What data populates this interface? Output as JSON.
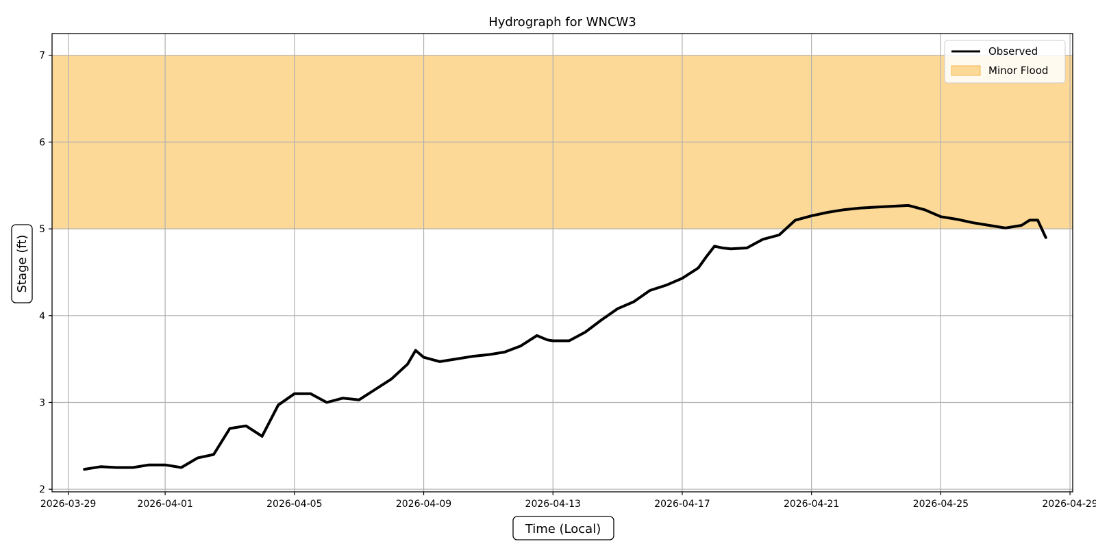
{
  "chart_data": {
    "type": "line",
    "title": "Hydrograph for WNCW3",
    "xlabel": "Time (Local)",
    "ylabel": "Stage (ft)",
    "xlim": [
      "2026-03-28T12:00",
      "2026-04-29T02:00"
    ],
    "ylim": [
      1.97,
      7.25
    ],
    "x_ticks": [
      "2026-03-29",
      "2026-04-01",
      "2026-04-05",
      "2026-04-09",
      "2026-04-13",
      "2026-04-17",
      "2026-04-21",
      "2026-04-25",
      "2026-04-29"
    ],
    "y_ticks": [
      "2",
      "3",
      "4",
      "5",
      "6",
      "7"
    ],
    "grid": true,
    "legend": {
      "position": "top-right",
      "entries": [
        {
          "name": "Observed",
          "kind": "line",
          "color": "#000000"
        },
        {
          "name": "Minor Flood",
          "kind": "patch",
          "color": "#fdd998",
          "edge": "#f5b54a"
        }
      ]
    },
    "bands": [
      {
        "name": "Minor Flood",
        "y_from": 5,
        "y_to": 7,
        "color": "#fdd998",
        "line_color": "#f0a830"
      }
    ],
    "series": [
      {
        "name": "Observed",
        "color": "#000000",
        "x": [
          "2026-03-29T12:00",
          "2026-03-30T00:00",
          "2026-03-30T12:00",
          "2026-03-31T00:00",
          "2026-03-31T12:00",
          "2026-04-01T00:00",
          "2026-04-01T12:00",
          "2026-04-02T00:00",
          "2026-04-02T12:00",
          "2026-04-03T00:00",
          "2026-04-03T12:00",
          "2026-04-04T00:00",
          "2026-04-04T12:00",
          "2026-04-05T00:00",
          "2026-04-05T12:00",
          "2026-04-06T00:00",
          "2026-04-06T12:00",
          "2026-04-07T00:00",
          "2026-04-07T12:00",
          "2026-04-08T00:00",
          "2026-04-08T12:00",
          "2026-04-08T18:00",
          "2026-04-09T00:00",
          "2026-04-09T12:00",
          "2026-04-10T00:00",
          "2026-04-10T12:00",
          "2026-04-11T00:00",
          "2026-04-11T12:00",
          "2026-04-12T00:00",
          "2026-04-12T12:00",
          "2026-04-12T20:00",
          "2026-04-13T00:00",
          "2026-04-13T12:00",
          "2026-04-14T00:00",
          "2026-04-14T06:00",
          "2026-04-14T12:00",
          "2026-04-15T00:00",
          "2026-04-15T12:00",
          "2026-04-16T00:00",
          "2026-04-16T12:00",
          "2026-04-17T00:00",
          "2026-04-17T12:00",
          "2026-04-17T18:00",
          "2026-04-18T00:00",
          "2026-04-18T06:00",
          "2026-04-18T12:00",
          "2026-04-19T00:00",
          "2026-04-19T12:00",
          "2026-04-20T00:00",
          "2026-04-20T12:00",
          "2026-04-21T00:00",
          "2026-04-21T12:00",
          "2026-04-22T00:00",
          "2026-04-22T12:00",
          "2026-04-23T00:00",
          "2026-04-23T12:00",
          "2026-04-24T00:00",
          "2026-04-24T12:00",
          "2026-04-25T00:00",
          "2026-04-25T12:00",
          "2026-04-26T00:00",
          "2026-04-26T12:00",
          "2026-04-27T00:00",
          "2026-04-27T12:00",
          "2026-04-27T18:00",
          "2026-04-28T00:00",
          "2026-04-28T06:00"
        ],
        "y": [
          2.23,
          2.26,
          2.25,
          2.25,
          2.28,
          2.28,
          2.25,
          2.36,
          2.4,
          2.7,
          2.73,
          2.61,
          2.97,
          3.1,
          3.1,
          3.0,
          3.05,
          3.03,
          3.15,
          3.27,
          3.44,
          3.6,
          3.52,
          3.47,
          3.5,
          3.53,
          3.55,
          3.58,
          3.65,
          3.77,
          3.72,
          3.71,
          3.71,
          3.81,
          3.88,
          3.95,
          4.08,
          4.16,
          4.29,
          4.35,
          4.43,
          4.55,
          4.68,
          4.8,
          4.78,
          4.77,
          4.78,
          4.88,
          4.93,
          5.1,
          5.15,
          5.19,
          5.22,
          5.24,
          5.25,
          5.26,
          5.27,
          5.22,
          5.14,
          5.11,
          5.07,
          5.04,
          5.01,
          5.04,
          5.1,
          5.1,
          4.9
        ]
      }
    ]
  }
}
